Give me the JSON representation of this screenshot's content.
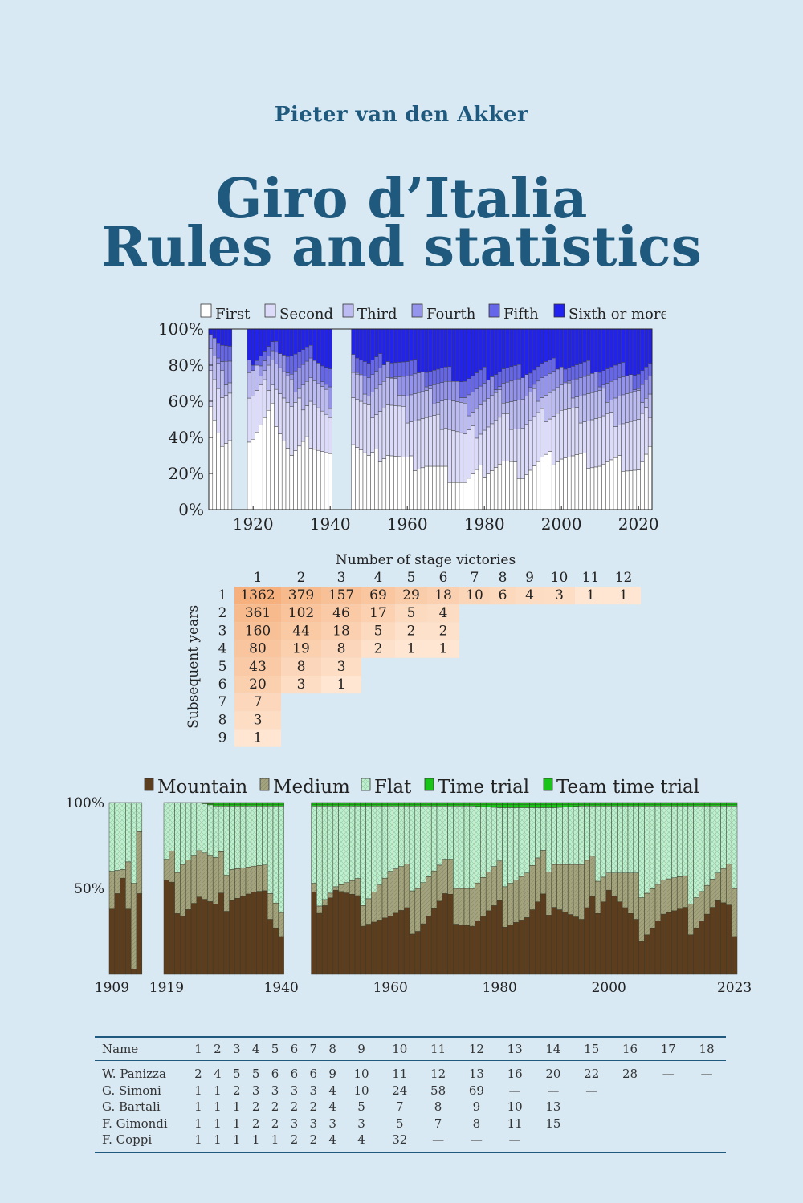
{
  "author": "Pieter van den Akker",
  "title": {
    "line1": "Giro d’Italia",
    "line2": "Rules and statistics"
  },
  "chart_data": [
    {
      "type": "bar",
      "stacked": true,
      "legend": [
        "First",
        "Second",
        "Third",
        "Fourth",
        "Fifth",
        "Sixth or more"
      ],
      "colors": [
        "#ffffff",
        "#dcdcfa",
        "#bcbcf2",
        "#9494ec",
        "#6666ea",
        "#2222ee"
      ],
      "legend_position": "top",
      "x_ticks": [
        "1920",
        "1940",
        "1960",
        "1980",
        "2000",
        "2020"
      ],
      "y_ticks": [
        "0%",
        "20%",
        "40%",
        "60%",
        "80%",
        "100%"
      ],
      "xlim": [
        1909,
        2023
      ],
      "ylim": [
        0,
        100
      ],
      "missing_years": [
        1915,
        1916,
        1917,
        1918,
        1941,
        1942,
        1943,
        1944,
        1945
      ],
      "cumulative_percent": {
        "x": [
          1909,
          1912,
          1920,
          1925,
          1930,
          1935,
          1940,
          1946,
          1950,
          1955,
          1960,
          1965,
          1970,
          1975,
          1980,
          1985,
          1990,
          1995,
          2000,
          2005,
          2010,
          2015,
          2020,
          2023
        ],
        "series": [
          {
            "name": "First",
            "values": [
              60,
              35,
              40,
              55,
              30,
              38,
              30,
              38,
              28,
              32,
              26,
              25,
              20,
              15,
              22,
              26,
              20,
              27,
              30,
              28,
              25,
              26,
              22,
              32
            ]
          },
          {
            "name": "Second",
            "values": [
              78,
              60,
              62,
              72,
              55,
              62,
              48,
              62,
              54,
              58,
              52,
              50,
              48,
              40,
              46,
              50,
              46,
              52,
              55,
              52,
              50,
              50,
              48,
              55
            ]
          },
          {
            "name": "Third",
            "values": [
              88,
              73,
              74,
              84,
              68,
              73,
              60,
              74,
              66,
              71,
              65,
              63,
              62,
              55,
              60,
              63,
              60,
              65,
              67,
              65,
              63,
              64,
              62,
              66
            ]
          },
          {
            "name": "Fourth",
            "values": [
              94,
              85,
              78,
              87,
              78,
              82,
              70,
              82,
              74,
              78,
              74,
              72,
              70,
              65,
              68,
              72,
              70,
              74,
              75,
              73,
              72,
              72,
              70,
              74
            ]
          },
          {
            "name": "Fifth",
            "values": [
              98,
              92,
              82,
              90,
              86,
              87,
              78,
              88,
              80,
              84,
              80,
              78,
              76,
              72,
              75,
              78,
              76,
              80,
              80,
              79,
              78,
              78,
              76,
              79
            ]
          },
          {
            "name": "Sixth or more",
            "values": [
              100,
              100,
              100,
              100,
              100,
              100,
              100,
              100,
              100,
              100,
              100,
              100,
              100,
              100,
              100,
              100,
              100,
              100,
              100,
              100,
              100,
              100,
              100,
              100
            ]
          }
        ]
      }
    },
    {
      "type": "heatmap",
      "xlabel": "Number of stage victories",
      "ylabel": "Subsequent years",
      "columns": [
        "1",
        "2",
        "3",
        "4",
        "5",
        "6",
        "7",
        "8",
        "9",
        "10",
        "11",
        "12"
      ],
      "rows": [
        "1",
        "2",
        "3",
        "4",
        "5",
        "6",
        "7",
        "8",
        "9"
      ],
      "values": [
        [
          "1362",
          "379",
          "157",
          "69",
          "29",
          "18",
          "10",
          "6",
          "4",
          "3",
          "1",
          "1"
        ],
        [
          "361",
          "102",
          "46",
          "17",
          "5",
          "4"
        ],
        [
          "160",
          "44",
          "18",
          "5",
          "2",
          "2"
        ],
        [
          "80",
          "19",
          "8",
          "2",
          "1",
          "1"
        ],
        [
          "43",
          "8",
          "3"
        ],
        [
          "20",
          "3",
          "1"
        ],
        [
          "7"
        ],
        [
          "3"
        ],
        [
          "1"
        ]
      ]
    },
    {
      "type": "bar",
      "stacked": true,
      "legend": [
        "Mountain",
        "Medium",
        "Flat",
        "Time trial",
        "Team time trial"
      ],
      "colors": [
        "#5c3d1e",
        "#a3a37e",
        "#bff0cf",
        "#18c418",
        "#18c418"
      ],
      "legend_position": "top",
      "x_ticks": [
        "1909",
        "1919",
        "1940",
        "1960",
        "1980",
        "2000",
        "2023"
      ],
      "y_ticks": [
        "50%",
        "100%"
      ],
      "xlim": [
        1909,
        2023
      ],
      "ylim": [
        0,
        100
      ],
      "missing_years": [
        1915,
        1916,
        1917,
        1918,
        1941,
        1942,
        1943,
        1944,
        1945
      ],
      "cumulative_percent": {
        "x": [
          1909,
          1911,
          1913,
          1914,
          1919,
          1922,
          1925,
          1928,
          1931,
          1935,
          1938,
          1940,
          1946,
          1950,
          1955,
          1960,
          1965,
          1970,
          1975,
          1980,
          1985,
          1990,
          1995,
          2000,
          2005,
          2010,
          2015,
          2020,
          2023
        ],
        "series": [
          {
            "name": "Mountain",
            "values": [
              36,
              50,
              10,
              52,
              50,
              40,
              45,
              35,
              48,
              45,
              40,
              26,
              40,
              50,
              36,
              32,
              30,
              42,
              30,
              35,
              32,
              45,
              28,
              52,
              25,
              35,
              30,
              40,
              30
            ]
          },
          {
            "name": "Medium",
            "values": [
              58,
              55,
              60,
              88,
              62,
              70,
              72,
              62,
              66,
              60,
              55,
              40,
              45,
              52,
              48,
              58,
              55,
              62,
              52,
              58,
              58,
              70,
              60,
              62,
              52,
              55,
              48,
              56,
              58
            ]
          },
          {
            "name": "Flat",
            "values": [
              100,
              100,
              100,
              100,
              100,
              100,
              100,
              98,
              98,
              98,
              98,
              98,
              98,
              98,
              98,
              98,
              98,
              98,
              98,
              97,
              97,
              97,
              98,
              98,
              98,
              98,
              98,
              98,
              98
            ]
          },
          {
            "name": "Time trial",
            "values": [
              100,
              100,
              100,
              100,
              100,
              100,
              100,
              99,
              99,
              99,
              99,
              99,
              99,
              99,
              99,
              99,
              99,
              99,
              99,
              99,
              99,
              99,
              99,
              99,
              99,
              99,
              99,
              99,
              99
            ]
          },
          {
            "name": "Team time trial",
            "values": [
              100,
              100,
              100,
              100,
              100,
              100,
              100,
              100,
              100,
              100,
              100,
              100,
              100,
              100,
              100,
              100,
              100,
              100,
              100,
              100,
              100,
              100,
              100,
              100,
              100,
              100,
              100,
              100,
              100
            ]
          }
        ]
      }
    }
  ],
  "table": {
    "header": [
      "Name",
      "1",
      "2",
      "3",
      "4",
      "5",
      "6",
      "7",
      "8",
      "9",
      "10",
      "11",
      "12",
      "13",
      "14",
      "15",
      "16",
      "17",
      "18"
    ],
    "rows": [
      [
        "W. Panizza",
        "2",
        "4",
        "5",
        "5",
        "6",
        "6",
        "6",
        "9",
        "10",
        "11",
        "12",
        "13",
        "16",
        "20",
        "22",
        "28",
        "—",
        "—"
      ],
      [
        "G. Simoni",
        "1",
        "1",
        "2",
        "3",
        "3",
        "3",
        "3",
        "4",
        "10",
        "24",
        "58",
        "69",
        "—",
        "—",
        "—",
        "",
        "",
        ""
      ],
      [
        "G. Bartali",
        "1",
        "1",
        "1",
        "2",
        "2",
        "2",
        "2",
        "4",
        "5",
        "7",
        "8",
        "9",
        "10",
        "13",
        "",
        "",
        "",
        ""
      ],
      [
        "F. Gimondi",
        "1",
        "1",
        "1",
        "2",
        "2",
        "3",
        "3",
        "3",
        "3",
        "5",
        "7",
        "8",
        "11",
        "15",
        "",
        "",
        "",
        ""
      ],
      [
        "F. Coppi",
        "1",
        "1",
        "1",
        "1",
        "1",
        "2",
        "2",
        "4",
        "4",
        "32",
        "—",
        "—",
        "—",
        "",
        "",
        "",
        "",
        ""
      ]
    ]
  }
}
